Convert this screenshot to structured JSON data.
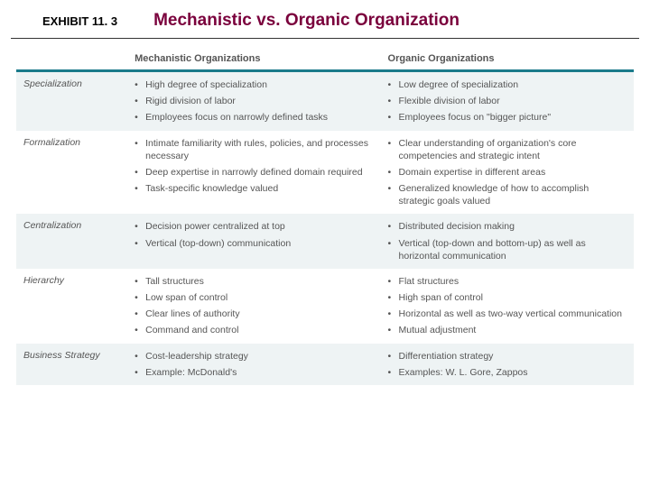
{
  "header": {
    "exhibit_label": "EXHIBIT 11. 3",
    "title_text": "Mechanistic vs. Organic Organization",
    "title_color": "#7a003c",
    "rule_color": "#1a7a8a"
  },
  "table": {
    "columns": {
      "category": "",
      "mechanistic": "Mechanistic Organizations",
      "organic": "Organic Organizations"
    },
    "band_colors": {
      "a": "#eef3f4",
      "b": "#ffffff"
    },
    "rows": [
      {
        "band": "a",
        "category": "Specialization",
        "mechanistic": [
          "High degree of specialization",
          "Rigid division of labor",
          "Employees focus on narrowly defined tasks"
        ],
        "organic": [
          "Low degree of specialization",
          "Flexible division of labor",
          "Employees focus on \"bigger picture\""
        ]
      },
      {
        "band": "b",
        "category": "Formalization",
        "mechanistic": [
          "Intimate familiarity with rules, policies, and processes necessary",
          "Deep expertise in narrowly defined domain required",
          "Task-specific knowledge valued"
        ],
        "organic": [
          "Clear understanding of organization's core competencies and strategic intent",
          "Domain expertise in different areas",
          "Generalized knowledge of how to accomplish strategic goals valued"
        ]
      },
      {
        "band": "a",
        "category": "Centralization",
        "mechanistic": [
          "Decision power centralized at top",
          "Vertical (top-down) communication"
        ],
        "organic": [
          "Distributed decision making",
          "Vertical (top-down and bottom-up) as well as horizontal communication"
        ]
      },
      {
        "band": "b",
        "category": "Hierarchy",
        "mechanistic": [
          "Tall structures",
          "Low span of control",
          "Clear lines of authority",
          "Command and control"
        ],
        "organic": [
          "Flat structures",
          "High span of control",
          "Horizontal as well as two-way vertical communication",
          "Mutual adjustment"
        ]
      },
      {
        "band": "a",
        "category": "Business Strategy",
        "mechanistic": [
          "Cost-leadership strategy",
          "Example: McDonald's"
        ],
        "organic": [
          "Differentiation strategy",
          "Examples: W. L. Gore, Zappos"
        ]
      }
    ]
  }
}
